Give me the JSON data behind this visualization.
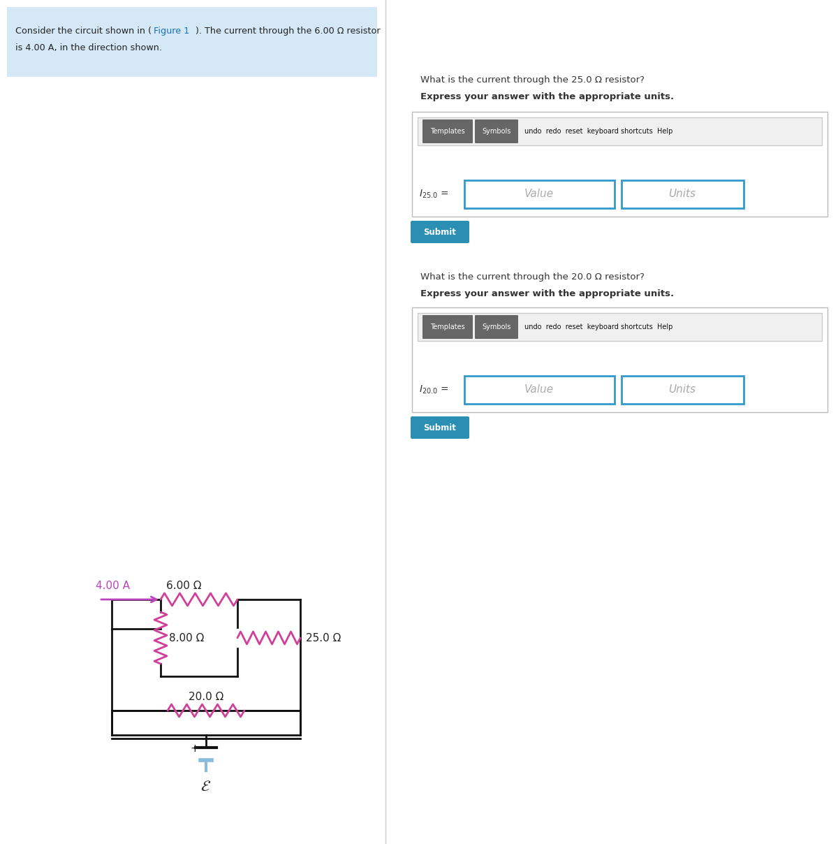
{
  "bg_color": "#ffffff",
  "panel_bg": "#d5e8f5",
  "problem_line1a": "Consider the circuit shown in (",
  "problem_link": "Figure 1",
  "problem_line1b": "). The current through the 6.00 Ω resistor",
  "problem_line2": "is 4.00 A, in the direction shown.",
  "link_color": "#1a70b8",
  "q1_text1": "What is the current through the 25.0 Ω resistor?",
  "q1_text2": "Express your answer with the appropriate units.",
  "q1_label": "$I_{25.0}$",
  "q2_text1": "What is the current through the 20.0 Ω resistor?",
  "q2_text2": "Express your answer with the appropriate units.",
  "q2_label": "$I_{20.0}$",
  "submit_color": "#2b8fb3",
  "input_border": "#3399cc",
  "current_color": "#bb44bb",
  "resistor_color": "#d0409a",
  "wire_color": "#111111",
  "battery_color": "#88bbdd",
  "r6": "6.00 Ω",
  "r25": "25.0 Ω",
  "r8": "8.00 Ω",
  "r20": "20.0 Ω",
  "current_val": "4.00 A",
  "emf_label": "ε"
}
